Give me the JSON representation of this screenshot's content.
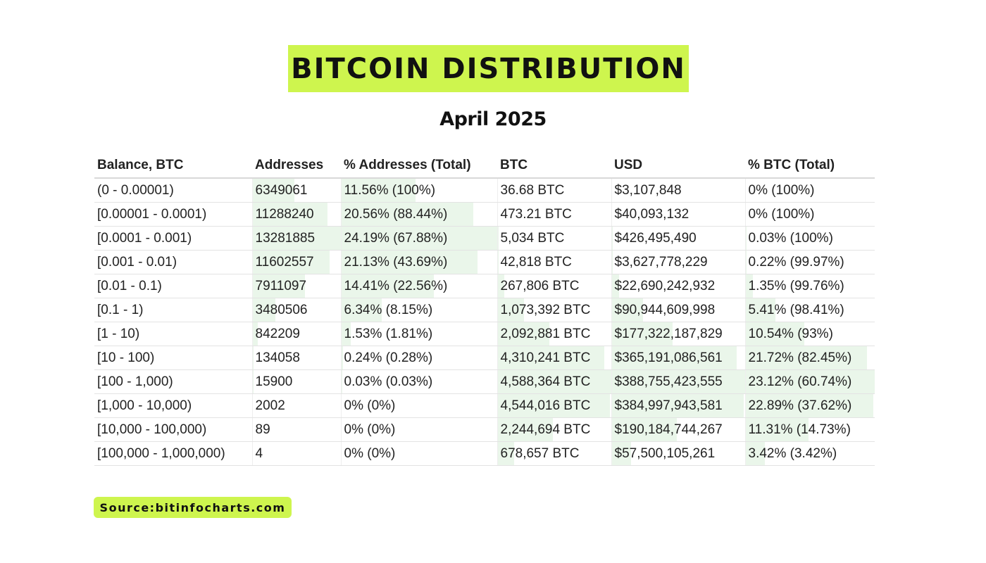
{
  "header": {
    "title": "BITCOIN DISTRIBUTION",
    "subtitle": "April 2025"
  },
  "colors": {
    "accent": "#cef54e",
    "bar_fill": "#eaf6ea",
    "text": "#111111"
  },
  "chart_data": {
    "type": "table",
    "columns": [
      "Balance, BTC",
      "Addresses",
      "% Addresses (Total)",
      "BTC",
      "USD",
      "% BTC (Total)"
    ],
    "rows": [
      {
        "balance": "(0 - 0.00001)",
        "addresses": "6349061",
        "pct_addresses": "11.56% (100%)",
        "btc": "36.68 BTC",
        "usd": "$3,107,848",
        "pct_btc": "0% (100%)"
      },
      {
        "balance": "[0.00001 - 0.0001)",
        "addresses": "11288240",
        "pct_addresses": "20.56% (88.44%)",
        "btc": "473.21 BTC",
        "usd": "$40,093,132",
        "pct_btc": "0% (100%)"
      },
      {
        "balance": "[0.0001 - 0.001)",
        "addresses": "13281885",
        "pct_addresses": "24.19% (67.88%)",
        "btc": "5,034 BTC",
        "usd": "$426,495,490",
        "pct_btc": "0.03% (100%)"
      },
      {
        "balance": "[0.001 - 0.01)",
        "addresses": "11602557",
        "pct_addresses": "21.13% (43.69%)",
        "btc": "42,818 BTC",
        "usd": "$3,627,778,229",
        "pct_btc": "0.22% (99.97%)"
      },
      {
        "balance": "[0.01 - 0.1)",
        "addresses": "7911097",
        "pct_addresses": "14.41% (22.56%)",
        "btc": "267,806 BTC",
        "usd": "$22,690,242,932",
        "pct_btc": "1.35% (99.76%)"
      },
      {
        "balance": "[0.1 - 1)",
        "addresses": "3480506",
        "pct_addresses": "6.34% (8.15%)",
        "btc": "1,073,392 BTC",
        "usd": "$90,944,609,998",
        "pct_btc": "5.41% (98.41%)"
      },
      {
        "balance": "[1 - 10)",
        "addresses": "842209",
        "pct_addresses": "1.53% (1.81%)",
        "btc": "2,092,881 BTC",
        "usd": "$177,322,187,829",
        "pct_btc": "10.54% (93%)"
      },
      {
        "balance": "[10 - 100)",
        "addresses": "134058",
        "pct_addresses": "0.24% (0.28%)",
        "btc": "4,310,241 BTC",
        "usd": "$365,191,086,561",
        "pct_btc": "21.72% (82.45%)"
      },
      {
        "balance": "[100 - 1,000)",
        "addresses": "15900",
        "pct_addresses": "0.03% (0.03%)",
        "btc": "4,588,364 BTC",
        "usd": "$388,755,423,555",
        "pct_btc": "23.12% (60.74%)"
      },
      {
        "balance": "[1,000 - 10,000)",
        "addresses": "2002",
        "pct_addresses": "0% (0%)",
        "btc": "4,544,016 BTC",
        "usd": "$384,997,943,581",
        "pct_btc": "22.89% (37.62%)"
      },
      {
        "balance": "[10,000 - 100,000)",
        "addresses": "89",
        "pct_addresses": "0% (0%)",
        "btc": "2,244,694 BTC",
        "usd": "$190,184,744,267",
        "pct_btc": "11.31% (14.73%)"
      },
      {
        "balance": "[100,000 - 1,000,000)",
        "addresses": "4",
        "pct_addresses": "0% (0%)",
        "btc": "678,657 BTC",
        "usd": "$57,500,105,261",
        "pct_btc": "3.42% (3.42%)"
      }
    ],
    "shares": {
      "pct_addresses": [
        11.56,
        20.56,
        24.19,
        21.13,
        14.41,
        6.34,
        1.53,
        0.24,
        0.03,
        0,
        0,
        0
      ],
      "pct_btc": [
        0,
        0,
        0.03,
        0.22,
        1.35,
        5.41,
        10.54,
        21.72,
        23.12,
        22.89,
        11.31,
        3.42
      ]
    }
  },
  "footer": {
    "source": "Source:bitinfocharts.com"
  }
}
